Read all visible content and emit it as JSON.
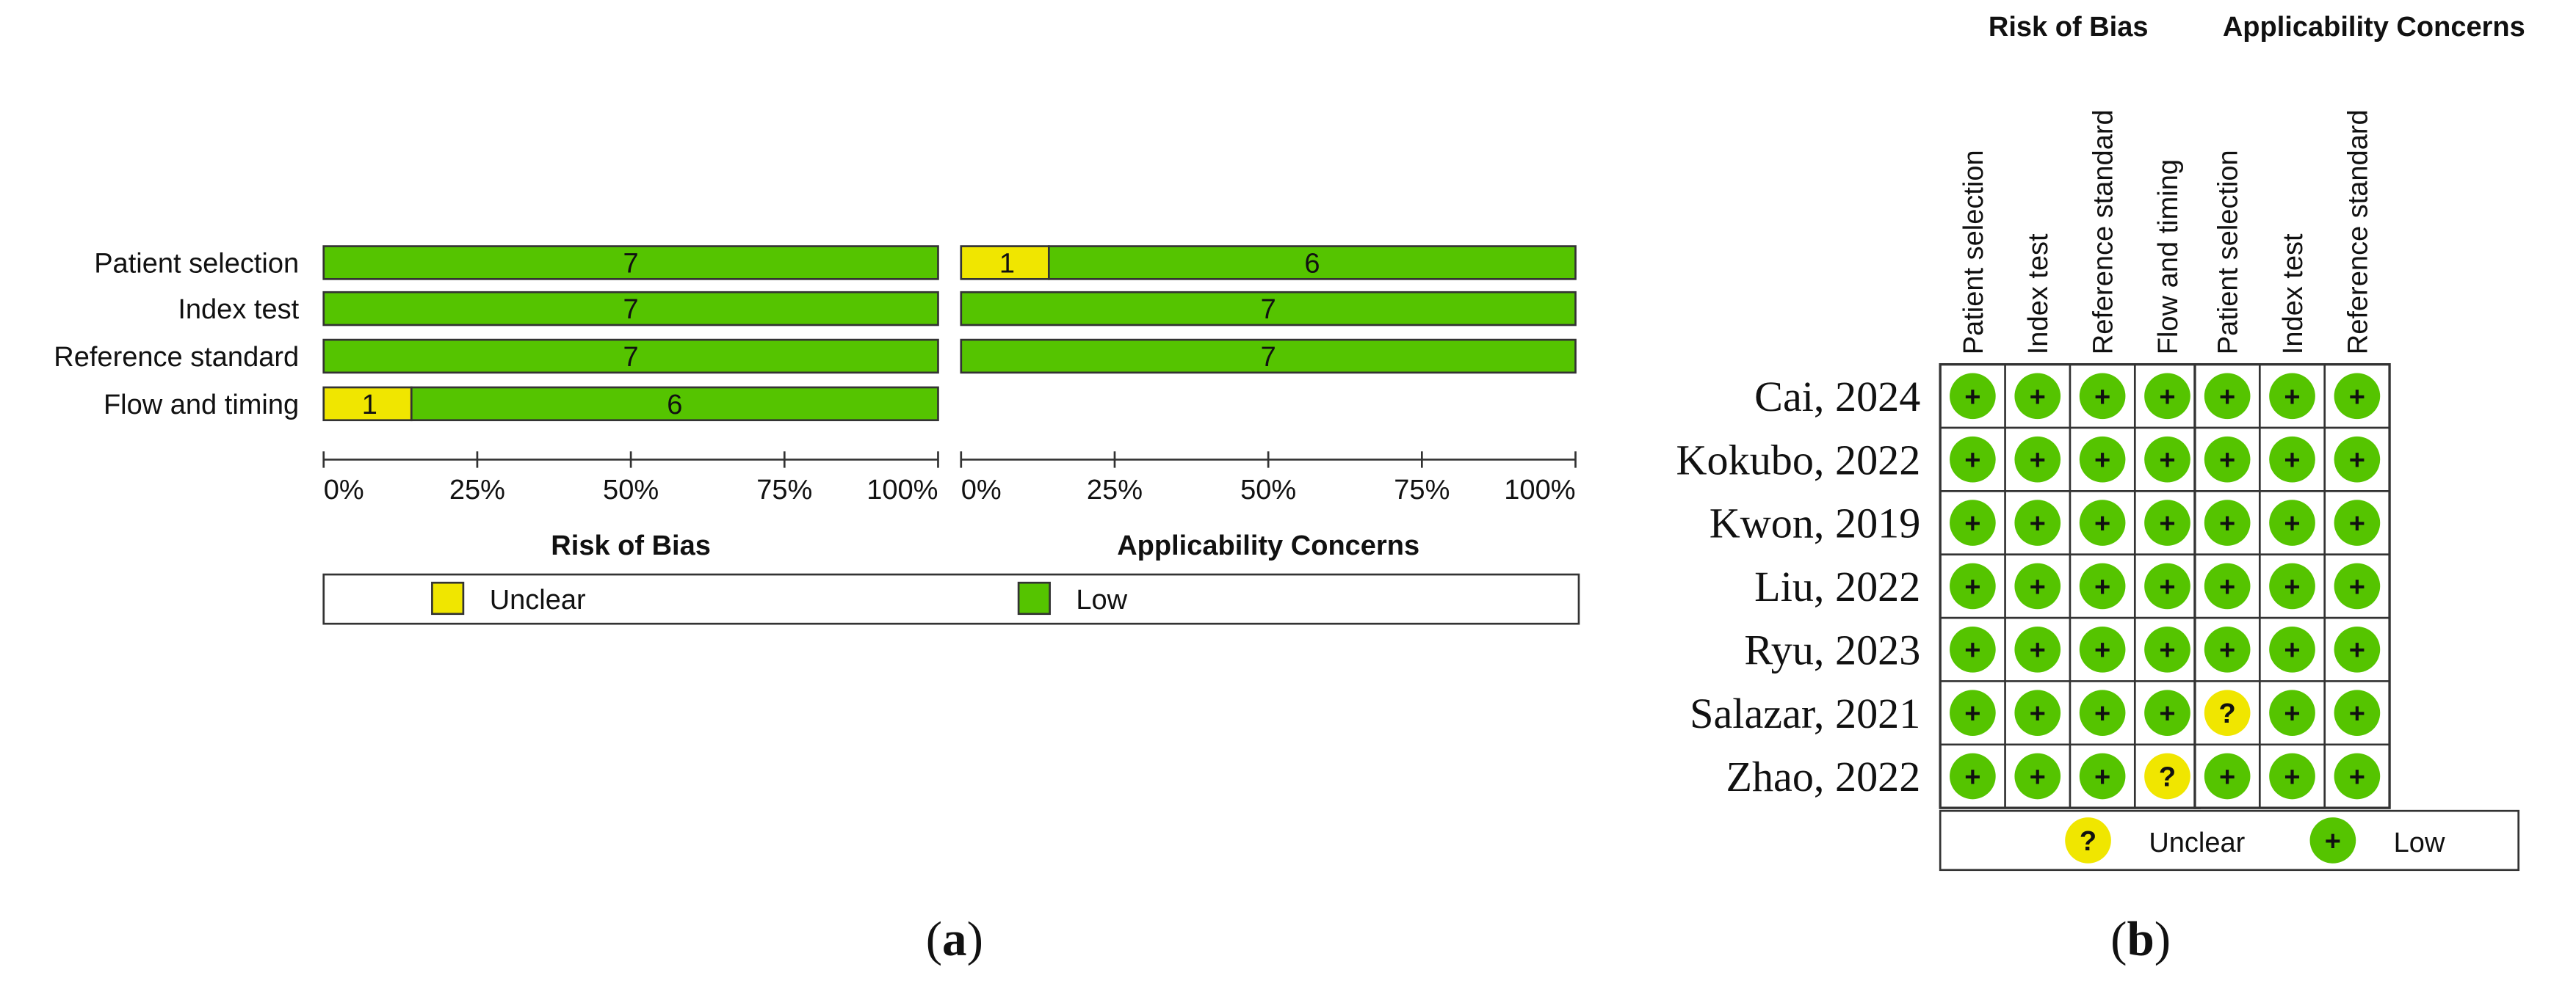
{
  "panel_a": {
    "caption_open": "(",
    "caption_letter": "a",
    "caption_close": ")",
    "chart_data": {
      "type": "bar",
      "stacked": true,
      "categories": [
        "Patient selection",
        "Index test",
        "Reference standard",
        "Flow and timing"
      ],
      "groups": [
        {
          "title": "Risk of Bias",
          "series": [
            {
              "name": "Unclear",
              "values": [
                0,
                0,
                0,
                1
              ]
            },
            {
              "name": "Low",
              "values": [
                7,
                7,
                7,
                6
              ]
            }
          ]
        },
        {
          "title": "Applicability Concerns",
          "series": [
            {
              "name": "Unclear",
              "values": [
                1,
                0,
                0,
                null
              ]
            },
            {
              "name": "Low",
              "values": [
                6,
                7,
                7,
                null
              ]
            }
          ]
        }
      ],
      "total": 7,
      "xlim": [
        0,
        100
      ],
      "x_ticks": [
        "0%",
        "25%",
        "50%",
        "75%",
        "100%"
      ],
      "legend": {
        "placement": "bottom",
        "items": [
          {
            "label": "Unclear",
            "color": "#f0e600"
          },
          {
            "label": "Low",
            "color": "#55c400"
          }
        ]
      }
    }
  },
  "panel_b": {
    "caption_open": "(",
    "caption_letter": "b",
    "caption_close": ")",
    "chart_data": {
      "type": "table",
      "group_titles": [
        "Risk of Bias",
        "Applicability Concerns"
      ],
      "columns": [
        [
          "Patient selection",
          "Index test",
          "Reference standard",
          "Flow and timing"
        ],
        [
          "Patient selection",
          "Index test",
          "Reference standard"
        ]
      ],
      "rows": [
        {
          "study": "Cai, 2024",
          "rob": [
            "+",
            "+",
            "+",
            "+"
          ],
          "app": [
            "+",
            "+",
            "+"
          ]
        },
        {
          "study": "Kokubo, 2022",
          "rob": [
            "+",
            "+",
            "+",
            "+"
          ],
          "app": [
            "+",
            "+",
            "+"
          ]
        },
        {
          "study": "Kwon, 2019",
          "rob": [
            "+",
            "+",
            "+",
            "+"
          ],
          "app": [
            "+",
            "+",
            "+"
          ]
        },
        {
          "study": "Liu, 2022",
          "rob": [
            "+",
            "+",
            "+",
            "+"
          ],
          "app": [
            "+",
            "+",
            "+"
          ]
        },
        {
          "study": "Ryu, 2023",
          "rob": [
            "+",
            "+",
            "+",
            "+"
          ],
          "app": [
            "+",
            "+",
            "+"
          ]
        },
        {
          "study": "Salazar, 2021",
          "rob": [
            "+",
            "+",
            "+",
            "+"
          ],
          "app": [
            "?",
            "+",
            "+"
          ]
        },
        {
          "study": "Zhao, 2022",
          "rob": [
            "+",
            "+",
            "+",
            "?"
          ],
          "app": [
            "+",
            "+",
            "+"
          ]
        }
      ],
      "legend": {
        "placement": "bottom",
        "items": [
          {
            "symbol": "?",
            "label": "Unclear",
            "color": "#f0e600"
          },
          {
            "symbol": "+",
            "label": "Low",
            "color": "#55c400"
          }
        ]
      }
    }
  },
  "colors": {
    "low": "#55c400",
    "unclear": "#f0e600",
    "border": "#333333"
  }
}
